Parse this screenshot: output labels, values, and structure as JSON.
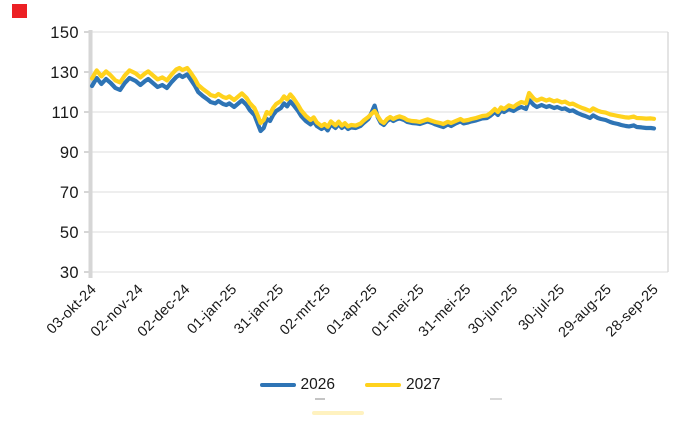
{
  "marker": {
    "color": "#EC2024"
  },
  "legend": {
    "items": [
      {
        "label": "2026",
        "color": "#2E74B5"
      },
      {
        "label": "2027",
        "color": "#FFD21D"
      }
    ]
  },
  "chart_data": {
    "type": "line",
    "title": "",
    "xlabel": "",
    "ylabel": "",
    "grid": "horizontal",
    "legend_position": "bottom",
    "ylim": [
      30,
      150
    ],
    "y_ticks": [
      150,
      130,
      110,
      90,
      70,
      50,
      30
    ],
    "x_range_days": 360,
    "x_tick_interval_days": 30,
    "x_tick_labels": [
      "03-okt-24",
      "02-nov-24",
      "02-dec-24",
      "01-jan-25",
      "31-jan-25",
      "02-mrt-25",
      "01-apr-25",
      "01-mei-25",
      "31-mei-25",
      "30-jun-25",
      "30-jul-25",
      "29-aug-25",
      "28-sep-25"
    ],
    "axis_color": "#D6D6D6",
    "gridline_color": "#E4E4E4",
    "series": [
      {
        "name": "2026",
        "color": "#2E74B5",
        "points": [
          [
            0,
            123
          ],
          [
            3,
            127
          ],
          [
            6,
            124
          ],
          [
            9,
            126.5
          ],
          [
            12,
            124.5
          ],
          [
            15,
            122
          ],
          [
            18,
            121
          ],
          [
            21,
            124.5
          ],
          [
            24,
            127
          ],
          [
            28,
            125.5
          ],
          [
            31,
            123.5
          ],
          [
            34,
            125.5
          ],
          [
            36,
            126.5
          ],
          [
            39,
            124.5
          ],
          [
            42,
            122.5
          ],
          [
            45,
            123.5
          ],
          [
            48,
            122
          ],
          [
            51,
            125
          ],
          [
            54,
            127.5
          ],
          [
            56,
            128.5
          ],
          [
            58,
            127.5
          ],
          [
            61,
            128.8
          ],
          [
            63,
            126.5
          ],
          [
            66,
            123
          ],
          [
            68,
            120
          ],
          [
            71,
            118
          ],
          [
            74,
            116.3
          ],
          [
            76,
            115
          ],
          [
            79,
            114.3
          ],
          [
            81,
            115.5
          ],
          [
            84,
            114
          ],
          [
            86,
            113.5
          ],
          [
            88,
            114.3
          ],
          [
            91,
            112.5
          ],
          [
            93,
            113.8
          ],
          [
            96,
            115.8
          ],
          [
            99,
            113.5
          ],
          [
            101,
            111
          ],
          [
            104,
            108.5
          ],
          [
            106,
            104.5
          ],
          [
            108,
            100.5
          ],
          [
            110,
            102
          ],
          [
            112,
            106.5
          ],
          [
            114,
            105.5
          ],
          [
            116,
            108.5
          ],
          [
            118,
            110.5
          ],
          [
            121,
            112
          ],
          [
            123,
            114.3
          ],
          [
            125,
            112.8
          ],
          [
            127,
            115.3
          ],
          [
            129,
            113.5
          ],
          [
            132,
            110.5
          ],
          [
            134,
            108
          ],
          [
            137,
            105.5
          ],
          [
            140,
            103.8
          ],
          [
            142,
            105.3
          ],
          [
            144,
            103
          ],
          [
            147,
            101.5
          ],
          [
            149,
            102.5
          ],
          [
            151,
            100.8
          ],
          [
            153,
            103.8
          ],
          [
            156,
            102
          ],
          [
            158,
            104
          ],
          [
            160,
            102
          ],
          [
            162,
            103.2
          ],
          [
            164,
            101.5
          ],
          [
            166,
            102.3
          ],
          [
            169,
            102
          ],
          [
            172,
            103
          ],
          [
            174,
            104.5
          ],
          [
            177,
            106.5
          ],
          [
            179,
            109.5
          ],
          [
            181,
            113.2
          ],
          [
            183,
            107.5
          ],
          [
            185,
            104.5
          ],
          [
            187,
            103.5
          ],
          [
            189,
            105.5
          ],
          [
            191,
            106.5
          ],
          [
            193,
            105.5
          ],
          [
            195,
            106.3
          ],
          [
            197,
            106.8
          ],
          [
            200,
            106
          ],
          [
            202,
            105
          ],
          [
            205,
            104.5
          ],
          [
            208,
            104.3
          ],
          [
            210,
            104
          ],
          [
            213,
            104.8
          ],
          [
            215,
            105.3
          ],
          [
            218,
            104.5
          ],
          [
            220,
            103.8
          ],
          [
            223,
            103
          ],
          [
            225,
            102.5
          ],
          [
            228,
            103.8
          ],
          [
            230,
            103
          ],
          [
            233,
            104.3
          ],
          [
            236,
            105.3
          ],
          [
            238,
            104.3
          ],
          [
            241,
            104.8
          ],
          [
            243,
            105.3
          ],
          [
            246,
            105.8
          ],
          [
            248,
            106.3
          ],
          [
            250,
            106.8
          ],
          [
            253,
            107
          ],
          [
            255,
            108
          ],
          [
            258,
            110
          ],
          [
            260,
            108.5
          ],
          [
            262,
            110.8
          ],
          [
            264,
            110
          ],
          [
            267,
            111.5
          ],
          [
            270,
            110.5
          ],
          [
            272,
            111.5
          ],
          [
            275,
            112.5
          ],
          [
            278,
            111.5
          ],
          [
            280,
            116
          ],
          [
            283,
            113.5
          ],
          [
            285,
            112.5
          ],
          [
            288,
            113.5
          ],
          [
            291,
            112.5
          ],
          [
            293,
            113
          ],
          [
            296,
            112
          ],
          [
            298,
            112.5
          ],
          [
            301,
            111.5
          ],
          [
            303,
            111.8
          ],
          [
            306,
            110.5
          ],
          [
            308,
            110.8
          ],
          [
            311,
            109.5
          ],
          [
            314,
            108.5
          ],
          [
            316,
            108
          ],
          [
            319,
            107
          ],
          [
            321,
            108.3
          ],
          [
            324,
            107
          ],
          [
            326,
            106.5
          ],
          [
            329,
            106
          ],
          [
            332,
            105
          ],
          [
            334,
            104.5
          ],
          [
            337,
            104
          ],
          [
            339,
            103.5
          ],
          [
            342,
            103
          ],
          [
            344,
            102.8
          ],
          [
            347,
            103.3
          ],
          [
            349,
            102.5
          ],
          [
            352,
            102.3
          ],
          [
            355,
            102
          ],
          [
            358,
            102
          ],
          [
            360,
            101.8
          ]
        ]
      },
      {
        "name": "2027",
        "color": "#FFD21D",
        "points": [
          [
            0,
            126.8
          ],
          [
            3,
            130.8
          ],
          [
            6,
            127.8
          ],
          [
            9,
            130.3
          ],
          [
            12,
            128.3
          ],
          [
            15,
            125.8
          ],
          [
            18,
            124.8
          ],
          [
            21,
            128.3
          ],
          [
            24,
            130.8
          ],
          [
            28,
            129.3
          ],
          [
            31,
            127.3
          ],
          [
            34,
            129.3
          ],
          [
            36,
            130.3
          ],
          [
            39,
            128.3
          ],
          [
            42,
            126.3
          ],
          [
            45,
            127.3
          ],
          [
            48,
            125.8
          ],
          [
            51,
            128.8
          ],
          [
            54,
            131.3
          ],
          [
            56,
            132
          ],
          [
            58,
            131
          ],
          [
            61,
            132
          ],
          [
            63,
            130
          ],
          [
            66,
            126.5
          ],
          [
            68,
            123.5
          ],
          [
            71,
            121.5
          ],
          [
            74,
            119.8
          ],
          [
            76,
            118.5
          ],
          [
            79,
            117.8
          ],
          [
            81,
            119
          ],
          [
            84,
            117.5
          ],
          [
            86,
            117
          ],
          [
            88,
            117.8
          ],
          [
            91,
            116
          ],
          [
            93,
            117.3
          ],
          [
            96,
            119.3
          ],
          [
            99,
            117
          ],
          [
            101,
            114.5
          ],
          [
            104,
            112
          ],
          [
            106,
            108.5
          ],
          [
            108,
            104.5
          ],
          [
            110,
            106
          ],
          [
            112,
            110
          ],
          [
            114,
            109
          ],
          [
            116,
            112
          ],
          [
            118,
            114
          ],
          [
            121,
            115.5
          ],
          [
            123,
            117.8
          ],
          [
            125,
            116.3
          ],
          [
            127,
            118.8
          ],
          [
            129,
            117
          ],
          [
            132,
            113.5
          ],
          [
            134,
            110.8
          ],
          [
            137,
            108
          ],
          [
            140,
            106
          ],
          [
            142,
            107.3
          ],
          [
            144,
            104.8
          ],
          [
            147,
            103
          ],
          [
            149,
            104
          ],
          [
            151,
            102.6
          ],
          [
            153,
            105.3
          ],
          [
            156,
            103.3
          ],
          [
            158,
            105.2
          ],
          [
            160,
            103.2
          ],
          [
            162,
            104.4
          ],
          [
            164,
            102.8
          ],
          [
            166,
            103.5
          ],
          [
            169,
            103.2
          ],
          [
            172,
            104.2
          ],
          [
            174,
            105.7
          ],
          [
            177,
            107.5
          ],
          [
            179,
            109
          ],
          [
            181,
            110.5
          ],
          [
            183,
            108
          ],
          [
            185,
            105.5
          ],
          [
            187,
            104.5
          ],
          [
            189,
            106.5
          ],
          [
            191,
            107.5
          ],
          [
            193,
            106.5
          ],
          [
            195,
            107.3
          ],
          [
            197,
            107.8
          ],
          [
            200,
            107
          ],
          [
            202,
            106
          ],
          [
            205,
            105.5
          ],
          [
            208,
            105.3
          ],
          [
            210,
            105
          ],
          [
            213,
            105.8
          ],
          [
            215,
            106.3
          ],
          [
            218,
            105.5
          ],
          [
            220,
            105
          ],
          [
            223,
            104.5
          ],
          [
            225,
            104
          ],
          [
            228,
            105.1
          ],
          [
            230,
            104.5
          ],
          [
            233,
            105.5
          ],
          [
            236,
            106.5
          ],
          [
            238,
            105.6
          ],
          [
            241,
            106
          ],
          [
            243,
            106.5
          ],
          [
            246,
            107
          ],
          [
            248,
            107.5
          ],
          [
            250,
            108
          ],
          [
            253,
            108.3
          ],
          [
            255,
            109.3
          ],
          [
            258,
            111.5
          ],
          [
            260,
            110
          ],
          [
            262,
            112.3
          ],
          [
            264,
            111.5
          ],
          [
            267,
            113.3
          ],
          [
            270,
            112.5
          ],
          [
            272,
            113.7
          ],
          [
            275,
            115
          ],
          [
            278,
            114.3
          ],
          [
            280,
            119.5
          ],
          [
            283,
            116.7
          ],
          [
            285,
            115.7
          ],
          [
            288,
            116.7
          ],
          [
            291,
            115.7
          ],
          [
            293,
            116.3
          ],
          [
            296,
            115.3
          ],
          [
            298,
            115.8
          ],
          [
            301,
            114.8
          ],
          [
            303,
            115.2
          ],
          [
            306,
            113.9
          ],
          [
            308,
            114.2
          ],
          [
            311,
            113
          ],
          [
            314,
            112
          ],
          [
            316,
            111.5
          ],
          [
            319,
            110.5
          ],
          [
            321,
            111.8
          ],
          [
            324,
            110.6
          ],
          [
            326,
            110.1
          ],
          [
            329,
            109.7
          ],
          [
            332,
            108.8
          ],
          [
            334,
            108.5
          ],
          [
            337,
            108
          ],
          [
            339,
            107.7
          ],
          [
            342,
            107.3
          ],
          [
            344,
            107.2
          ],
          [
            347,
            107.7
          ],
          [
            349,
            107
          ],
          [
            352,
            106.9
          ],
          [
            355,
            106.7
          ],
          [
            358,
            106.8
          ],
          [
            360,
            106.6
          ]
        ]
      }
    ]
  }
}
